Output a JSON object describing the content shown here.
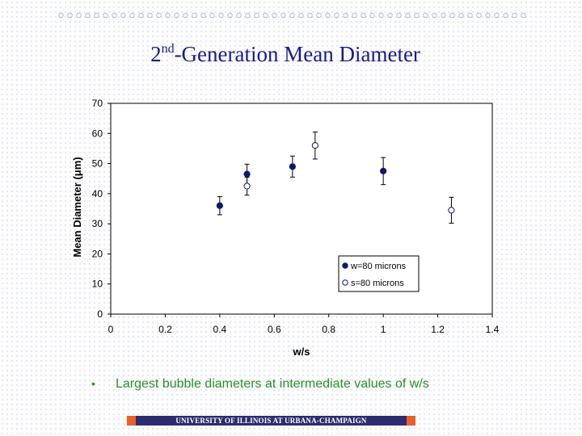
{
  "slide": {
    "title_sup": "nd",
    "title_rest": "-Generation Mean Diameter",
    "bullet_symbol": "•",
    "bullet_text": "Largest bubble diameters at intermediate values of w/s",
    "footer_text": "UNIVERSITY OF ILLINOIS AT URBANA-CHAMPAIGN",
    "title_color": "#1a1a8c",
    "bullet_color": "#2a8f2a",
    "footer_bg": "#2c2c6e",
    "footer_accent": "#e8602a"
  },
  "chart_data": {
    "type": "scatter",
    "title": "2nd-Generation Mean Diameter",
    "xlabel": "w/s",
    "ylabel_pre": "Mean Diameter (",
    "ylabel_mu": "μ",
    "ylabel_post": "m)",
    "xlim": [
      0,
      1.4
    ],
    "ylim": [
      0,
      70
    ],
    "x_ticks": [
      0,
      0.2,
      0.4,
      0.6,
      0.8,
      1,
      1.2,
      1.4
    ],
    "x_tick_labels": [
      "0",
      "0.2",
      "0.4",
      "0.6",
      "0.8",
      "1",
      "1.2",
      "1.4"
    ],
    "y_ticks": [
      0,
      10,
      20,
      30,
      40,
      50,
      60,
      70
    ],
    "y_tick_labels": [
      "0",
      "10",
      "20",
      "30",
      "40",
      "50",
      "60",
      "70"
    ],
    "grid": false,
    "legend_position": "bottom-right",
    "series": [
      {
        "name": "w=80 microns",
        "marker": "filled-circle",
        "color": "#0a1a6e",
        "points": [
          {
            "x": 0.4,
            "y": 36,
            "err": 3
          },
          {
            "x": 0.5,
            "y": 46.5,
            "err": 3.3
          },
          {
            "x": 0.667,
            "y": 49,
            "err": 3.5
          },
          {
            "x": 1.0,
            "y": 47.5,
            "err": 4.5
          }
        ]
      },
      {
        "name": "s=80 microns",
        "marker": "open-circle",
        "color": "#0a1a6e",
        "points": [
          {
            "x": 0.5,
            "y": 42.5,
            "err": 3
          },
          {
            "x": 0.75,
            "y": 56,
            "err": 4.5
          },
          {
            "x": 1.25,
            "y": 34.5,
            "err": 4.3
          }
        ]
      }
    ]
  }
}
